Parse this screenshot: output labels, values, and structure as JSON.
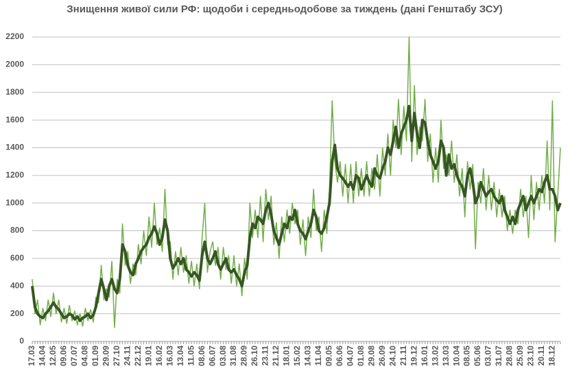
{
  "chart_data": {
    "type": "line",
    "title": "Знищення живої сили РФ: щодоби і середньодобове за тиждень (дані Генштабу ЗСУ)",
    "categories": [
      "17.03",
      null,
      null,
      null,
      "14.04",
      null,
      null,
      null,
      "12.05",
      null,
      null,
      null,
      "09.06",
      null,
      null,
      null,
      "07.07",
      null,
      null,
      null,
      "04.08",
      null,
      null,
      null,
      "01.09",
      null,
      null,
      null,
      "29.09",
      null,
      null,
      null,
      "27.10",
      null,
      null,
      null,
      "24.11",
      null,
      null,
      null,
      "22.12",
      null,
      null,
      null,
      "19.01",
      null,
      null,
      null,
      "16.02",
      null,
      null,
      null,
      "16.03",
      null,
      null,
      null,
      "13.04",
      null,
      null,
      null,
      "11.05",
      null,
      null,
      null,
      "08.06",
      null,
      null,
      null,
      "06.07",
      null,
      null,
      null,
      "03.08",
      null,
      null,
      null,
      "31.08",
      null,
      null,
      null,
      "28.09",
      null,
      null,
      null,
      "26.10",
      null,
      null,
      null,
      "23.11",
      null,
      null,
      null,
      "21.12",
      null,
      null,
      null,
      "18.01",
      null,
      null,
      null,
      "15.02",
      null,
      null,
      null,
      "14.03",
      null,
      null,
      null,
      "11.04",
      null,
      null,
      null,
      "09.05",
      null,
      null,
      null,
      "06.06",
      null,
      null,
      null,
      "04.07",
      null,
      null,
      null,
      "01.08",
      null,
      null,
      null,
      "29.08",
      null,
      null,
      null,
      "26.09",
      null,
      null,
      null,
      "24.10",
      null,
      null,
      null,
      "21.11",
      null,
      null,
      null,
      "19.12",
      null,
      null,
      null,
      "16.01",
      null,
      null,
      null,
      "13.02",
      null,
      null,
      null,
      "13.03",
      null,
      null,
      null,
      "10.04",
      null,
      null,
      null,
      "08.05",
      null,
      null,
      null,
      "05.06",
      null,
      null,
      null,
      "03.07",
      null,
      null,
      null,
      "31.07",
      null,
      null,
      null,
      "28.08",
      null,
      null,
      null,
      "25.09",
      null,
      null,
      null,
      "23.10",
      null,
      null,
      null,
      "20.11",
      null,
      null,
      null,
      "18.12",
      null,
      null,
      null
    ],
    "series": [
      {
        "color": "#70ad47",
        "width": 1.5,
        "values": [
          450,
          200,
          300,
          120,
          240,
          150,
          300,
          180,
          350,
          200,
          300,
          140,
          240,
          130,
          260,
          150,
          220,
          120,
          200,
          110,
          240,
          150,
          230,
          140,
          320,
          280,
          550,
          300,
          380,
          320,
          580,
          100,
          450,
          350,
          850,
          550,
          650,
          420,
          560,
          480,
          700,
          560,
          800,
          620,
          900,
          680,
          1000,
          700,
          820,
          650,
          1100,
          700,
          720,
          450,
          650,
          480,
          680,
          500,
          620,
          420,
          580,
          400,
          560,
          380,
          750,
          1000,
          500,
          650,
          720,
          550,
          680,
          450,
          680,
          520,
          620,
          420,
          620,
          400,
          560,
          330,
          600,
          450,
          1000,
          750,
          950,
          750,
          1050,
          720,
          1100,
          880,
          1050,
          700,
          860,
          600,
          900,
          720,
          950,
          780,
          1000,
          850,
          950,
          700,
          880,
          620,
          900,
          750,
          1100,
          800,
          900,
          650,
          950,
          780,
          1100,
          1740,
          1300,
          1150,
          1300,
          1050,
          1280,
          1000,
          1280,
          1000,
          1300,
          1050,
          1250,
          1050,
          1300,
          1050,
          1250,
          1100,
          1350,
          1050,
          1400,
          1200,
          1500,
          1200,
          1600,
          1400,
          1750,
          1350,
          1700,
          1450,
          2200,
          1300,
          1850,
          1350,
          1550,
          1450,
          1750,
          1300,
          1500,
          1150,
          1400,
          1150,
          1600,
          1250,
          1350,
          1200,
          1450,
          1150,
          1350,
          1050,
          1250,
          900,
          1300,
          1100,
          1280,
          670,
          1150,
          1000,
          1250,
          950,
          1200,
          950,
          1150,
          900,
          1100,
          900,
          1050,
          800,
          950,
          780,
          950,
          850,
          1100,
          900,
          1050,
          750,
          1200,
          880,
          1150,
          950,
          1200,
          1000,
          1450,
          950,
          1740,
          720,
          1050,
          1400
        ]
      },
      {
        "color": "#375623",
        "width": 4,
        "values": [
          400,
          250,
          200,
          180,
          170,
          200,
          220,
          250,
          280,
          250,
          230,
          200,
          170,
          180,
          200,
          190,
          160,
          180,
          150,
          170,
          180,
          200,
          170,
          190,
          250,
          350,
          450,
          380,
          300,
          400,
          450,
          380,
          350,
          450,
          700,
          650,
          550,
          500,
          480,
          560,
          600,
          650,
          680,
          700,
          750,
          780,
          830,
          780,
          700,
          750,
          880,
          800,
          600,
          530,
          560,
          600,
          560,
          600,
          520,
          500,
          470,
          500,
          480,
          440,
          620,
          720,
          600,
          560,
          600,
          650,
          560,
          520,
          560,
          600,
          520,
          500,
          520,
          480,
          450,
          400,
          500,
          550,
          750,
          850,
          820,
          900,
          880,
          850,
          950,
          1000,
          920,
          800,
          750,
          700,
          780,
          850,
          820,
          900,
          880,
          950,
          850,
          800,
          780,
          740,
          800,
          850,
          950,
          900,
          800,
          780,
          820,
          900,
          1000,
          1300,
          1420,
          1250,
          1200,
          1180,
          1150,
          1120,
          1150,
          1100,
          1200,
          1180,
          1100,
          1150,
          1200,
          1150,
          1120,
          1250,
          1200,
          1180,
          1250,
          1300,
          1400,
          1350,
          1450,
          1550,
          1400,
          1500,
          1550,
          1600,
          1700,
          1450,
          1650,
          1500,
          1400,
          1600,
          1580,
          1450,
          1350,
          1300,
          1250,
          1300,
          1450,
          1400,
          1200,
          1350,
          1250,
          1280,
          1200,
          1150,
          1120,
          1050,
          1200,
          1250,
          1150,
          1000,
          1050,
          1150,
          1100,
          1050,
          1080,
          1100,
          1050,
          1020,
          1000,
          1050,
          950,
          900,
          850,
          900,
          850,
          950,
          1000,
          1050,
          950,
          1000,
          1050,
          1000,
          1050,
          1100,
          1080,
          1150,
          1200,
          1100,
          1100,
          1050,
          950,
          1000
        ]
      }
    ],
    "ylim": [
      0,
      2200
    ],
    "yticks": [
      0,
      200,
      400,
      600,
      800,
      1000,
      1200,
      1400,
      1600,
      1800,
      2000,
      2200
    ],
    "grid": true
  }
}
